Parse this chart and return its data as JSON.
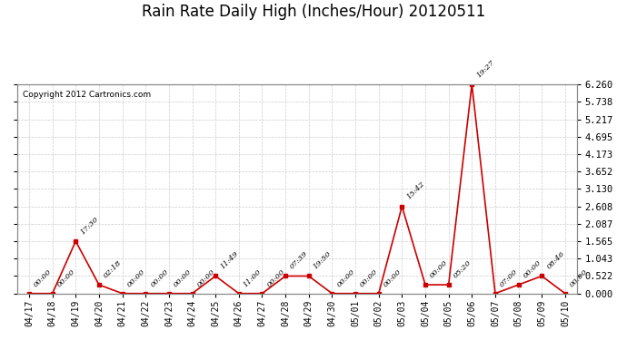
{
  "title": "Rain Rate Daily High (Inches/Hour) 20120511",
  "copyright": "Copyright 2012 Cartronics.com",
  "x_labels": [
    "04/17",
    "04/18",
    "04/19",
    "04/20",
    "04/21",
    "04/22",
    "04/23",
    "04/24",
    "04/25",
    "04/26",
    "04/27",
    "04/28",
    "04/29",
    "04/30",
    "05/01",
    "05/02",
    "05/03",
    "05/04",
    "05/05",
    "05/06",
    "05/07",
    "05/08",
    "05/09",
    "05/10"
  ],
  "y_values": [
    0.0,
    0.0,
    1.565,
    0.261,
    0.0,
    0.0,
    0.0,
    0.0,
    0.522,
    0.0,
    0.0,
    0.522,
    0.522,
    0.0,
    0.0,
    0.0,
    2.608,
    0.261,
    0.261,
    6.26,
    0.0,
    0.261,
    0.522,
    0.0
  ],
  "time_labels": [
    "00:00",
    "00:00",
    "17:30",
    "02:18",
    "00:00",
    "00:00",
    "00:00",
    "00:00",
    "11:49",
    "11:00",
    "00:00",
    "07:39",
    "19:50",
    "00:00",
    "00:00",
    "00:00",
    "15:42",
    "00:00",
    "05:20",
    "19:27",
    "07:00",
    "00:00",
    "08:46",
    "00:00"
  ],
  "yticks": [
    0.0,
    0.522,
    1.043,
    1.565,
    2.087,
    2.608,
    3.13,
    3.652,
    4.173,
    4.695,
    5.217,
    5.738,
    6.26
  ],
  "line_color": "#cc0000",
  "marker_color": "#cc0000",
  "bg_color": "#ffffff",
  "grid_color": "#cccccc",
  "title_fontsize": 12,
  "ylim": [
    0.0,
    6.26
  ]
}
